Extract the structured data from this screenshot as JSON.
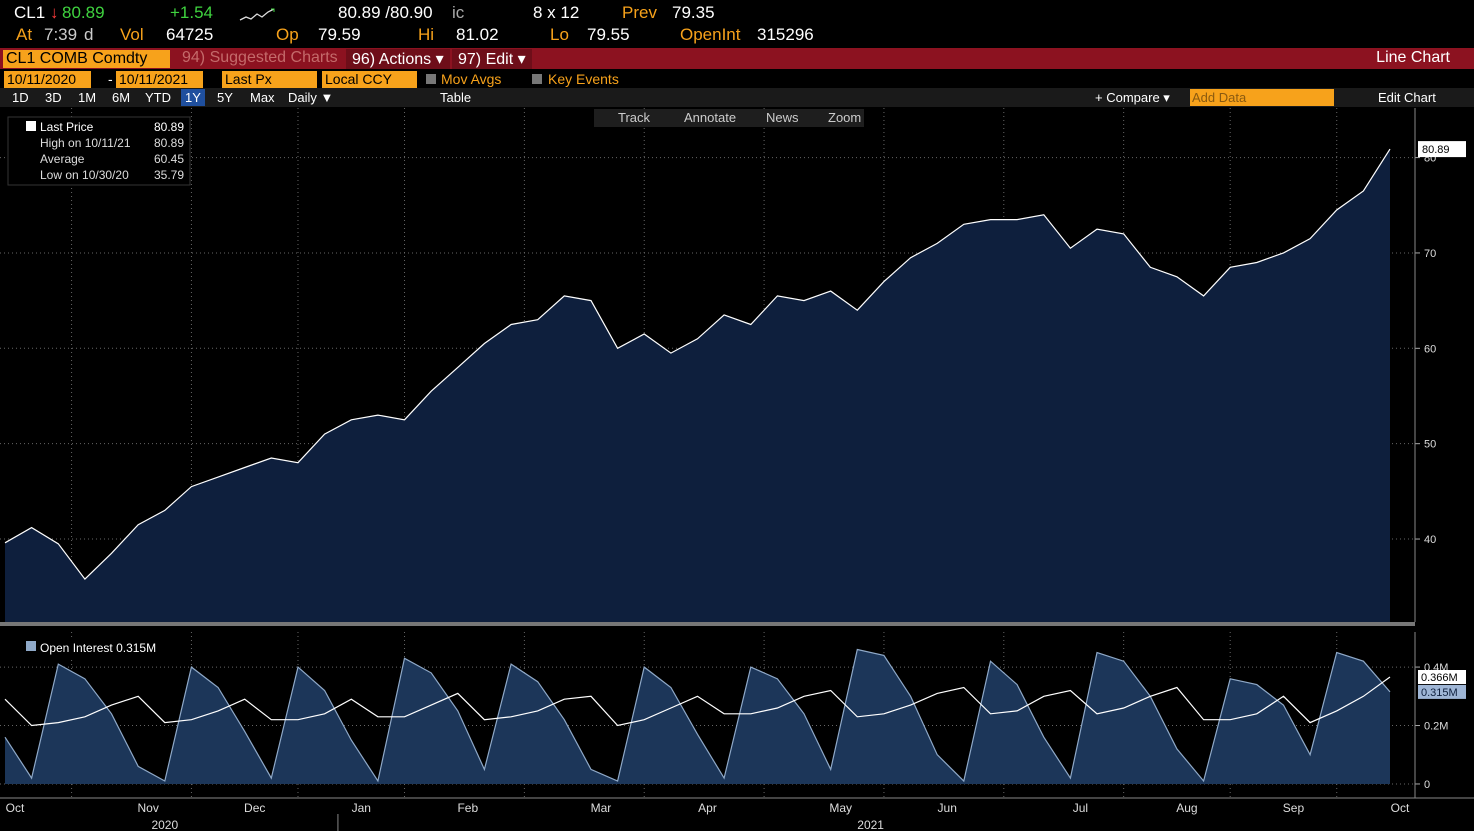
{
  "quote": {
    "ticker": "CL1",
    "direction": "↓",
    "last": "80.89",
    "change": "+1.54",
    "bid_ask": "80.89 /80.90",
    "ic": "ic",
    "size": "8 x 12",
    "prev_label": "Prev",
    "prev": "79.35",
    "at_label": "At",
    "time": "7:39",
    "time_suffix": "d",
    "vol_label": "Vol",
    "vol": "64725",
    "op_label": "Op",
    "op": "79.59",
    "hi_label": "Hi",
    "hi": "81.02",
    "lo_label": "Lo",
    "lo": "79.55",
    "oi_label": "OpenInt",
    "oi": "315296"
  },
  "menu": {
    "security": "CL1 COMB Comdty",
    "items": [
      "94) Suggested Charts",
      "96) Actions ▾",
      "97) Edit ▾"
    ],
    "chart_kind": "Line Chart"
  },
  "settings": {
    "start": "10/11/2020",
    "separator": "-",
    "end": "10/11/2021",
    "field": "Last Px",
    "currency": "Local CCY",
    "mov_avgs": "Mov Avgs",
    "key_events": "Key Events"
  },
  "toolbar": {
    "periods": [
      "1D",
      "3D",
      "1M",
      "6M",
      "YTD",
      "1Y",
      "5Y",
      "Max"
    ],
    "active_period": "1Y",
    "frequency": "Daily ▼",
    "table": "Table",
    "compare": "+ Compare ▾",
    "add_data": "Add Data",
    "edit_chart": "Edit Chart"
  },
  "chart_tools": [
    "Track",
    "Annotate",
    "News",
    "Zoom"
  ],
  "chart_data": [
    {
      "type": "area",
      "categories": [
        "Oct",
        null,
        null,
        null,
        null,
        "Nov",
        null,
        null,
        null,
        "Dec",
        null,
        null,
        null,
        "Jan",
        null,
        null,
        null,
        "Feb",
        null,
        null,
        null,
        null,
        "Mar",
        null,
        null,
        null,
        "Apr",
        null,
        null,
        null,
        null,
        "May",
        null,
        null,
        null,
        "Jun",
        null,
        null,
        null,
        null,
        "Jul",
        null,
        null,
        null,
        "Aug",
        null,
        null,
        null,
        "Sep",
        null,
        null,
        null,
        "Oct"
      ],
      "x_group_labels": [
        "2020",
        "2021"
      ],
      "series": [
        {
          "name": "Last Price",
          "color": "#ffffff",
          "fill": "#0e1f3d",
          "values": [
            39.6,
            41.2,
            39.5,
            35.8,
            38.5,
            41.5,
            43.0,
            45.5,
            46.5,
            47.5,
            48.5,
            48.0,
            51.0,
            52.5,
            53.0,
            52.5,
            55.5,
            58.0,
            60.5,
            62.5,
            63.0,
            65.5,
            65.0,
            60.0,
            61.5,
            59.5,
            61.0,
            63.5,
            62.5,
            65.5,
            65.0,
            66.0,
            64.0,
            67.0,
            69.5,
            71.0,
            73.0,
            73.5,
            73.5,
            74.0,
            70.5,
            72.5,
            72.0,
            68.5,
            67.5,
            65.5,
            68.5,
            69.0,
            70.0,
            71.5,
            74.5,
            76.5,
            80.89
          ]
        }
      ],
      "stats": [
        {
          "label": "High on 10/11/21",
          "value": 80.89
        },
        {
          "label": "Average",
          "value": 60.45
        },
        {
          "label": "Low on 10/30/20",
          "value": 35.79
        }
      ],
      "ylim": [
        31.3,
        85.2
      ],
      "yticks": [
        40,
        50,
        60,
        70,
        80
      ],
      "grid": true
    },
    {
      "type": "area",
      "series": [
        {
          "name": "Open Interest",
          "color": "#8fa9c8",
          "fill": "#1c3659",
          "values": [
            0.16,
            0.02,
            0.41,
            0.36,
            0.24,
            0.06,
            0.01,
            0.4,
            0.33,
            0.18,
            0.02,
            0.4,
            0.32,
            0.15,
            0.01,
            0.43,
            0.38,
            0.25,
            0.05,
            0.41,
            0.35,
            0.22,
            0.05,
            0.01,
            0.4,
            0.33,
            0.17,
            0.02,
            0.4,
            0.36,
            0.24,
            0.05,
            0.46,
            0.44,
            0.3,
            0.1,
            0.01,
            0.42,
            0.34,
            0.16,
            0.02,
            0.45,
            0.42,
            0.3,
            0.12,
            0.01,
            0.36,
            0.34,
            0.27,
            0.1,
            0.45,
            0.42,
            0.315
          ],
          "value_labels": [
            null,
            null,
            null,
            null,
            null,
            null,
            null,
            null,
            null,
            null,
            null,
            null,
            null,
            null,
            null,
            null,
            null,
            null,
            null,
            null,
            null,
            null,
            null,
            null,
            null,
            null,
            null,
            null,
            null,
            null,
            null,
            null,
            null,
            null,
            null,
            null,
            null,
            null,
            null,
            null,
            null,
            null,
            null,
            null,
            null,
            null,
            null,
            null,
            null,
            null,
            null,
            null,
            "0.315M"
          ]
        },
        {
          "color": "#ffffff",
          "values": [
            0.29,
            0.2,
            0.21,
            0.23,
            0.27,
            0.3,
            0.21,
            0.22,
            0.25,
            0.29,
            0.22,
            0.22,
            0.24,
            0.29,
            0.23,
            0.23,
            0.27,
            0.31,
            0.22,
            0.23,
            0.25,
            0.29,
            0.3,
            0.2,
            0.22,
            0.26,
            0.3,
            0.24,
            0.24,
            0.26,
            0.3,
            0.32,
            0.23,
            0.24,
            0.27,
            0.31,
            0.33,
            0.24,
            0.25,
            0.3,
            0.32,
            0.24,
            0.26,
            0.3,
            0.33,
            0.22,
            0.22,
            0.24,
            0.3,
            0.21,
            0.25,
            0.3,
            0.366
          ],
          "value_labels": [
            null,
            null,
            null,
            null,
            null,
            null,
            null,
            null,
            null,
            null,
            null,
            null,
            null,
            null,
            null,
            null,
            null,
            null,
            null,
            null,
            null,
            null,
            null,
            null,
            null,
            null,
            null,
            null,
            null,
            null,
            null,
            null,
            null,
            null,
            null,
            null,
            null,
            null,
            null,
            null,
            null,
            null,
            null,
            null,
            null,
            null,
            null,
            null,
            null,
            null,
            null,
            null,
            "0.366M"
          ]
        }
      ],
      "ylim": [
        -0.048,
        0.52
      ],
      "yticks": [
        0,
        {
          "value": 0.2,
          "label": "0.2M"
        },
        {
          "value": 0.4,
          "label": "0.4M"
        }
      ],
      "grid": true
    }
  ]
}
